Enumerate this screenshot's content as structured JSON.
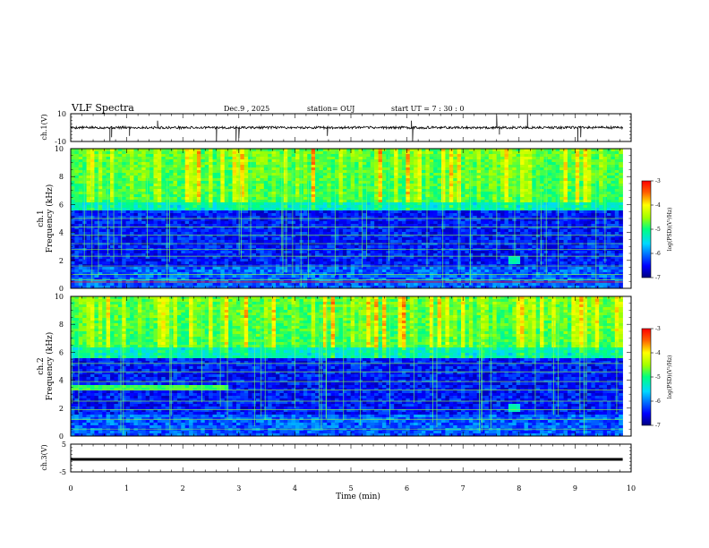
{
  "header": {
    "title": "VLF Spectra",
    "date": "Dec.9 , 2025",
    "station": "station= OUJ",
    "start": "start UT = 7 : 30 : 0"
  },
  "chart_data": [
    {
      "type": "line",
      "ylabel": "ch.1(V)",
      "ylim": [
        -10,
        10
      ],
      "yticks": [
        {
          "v": 10,
          "label": "10"
        },
        {
          "v": -10,
          "label": "-10"
        }
      ],
      "xlim": [
        0,
        10
      ],
      "baseline": 0,
      "spikes": [
        {
          "x": 0.7,
          "y": -9.5
        },
        {
          "x": 0.73,
          "y": -7.0
        },
        {
          "x": 1.05,
          "y": -6.0
        },
        {
          "x": 1.55,
          "y": 5.0
        },
        {
          "x": 2.6,
          "y": -9.8
        },
        {
          "x": 2.95,
          "y": -9.5
        },
        {
          "x": 3.0,
          "y": -7.5
        },
        {
          "x": 4.58,
          "y": -6.0
        },
        {
          "x": 6.08,
          "y": 5.0
        },
        {
          "x": 6.1,
          "y": -9.8
        },
        {
          "x": 7.6,
          "y": 9.0
        },
        {
          "x": 7.65,
          "y": -5.0
        },
        {
          "x": 8.15,
          "y": 9.5
        },
        {
          "x": 9.05,
          "y": -9.8
        },
        {
          "x": 9.1,
          "y": -7.0
        }
      ]
    },
    {
      "type": "heatmap",
      "channel": "ch.1",
      "ylabel": "Frequency (kHz)",
      "ylim": [
        0,
        10
      ],
      "yticks": [
        0,
        2,
        4,
        6,
        8,
        10
      ],
      "xlim": [
        0,
        10
      ],
      "colorbar": {
        "label": "log(PSD)(V²/Hz)",
        "range": [
          -7,
          -3
        ],
        "ticks": [
          -3,
          -4,
          -5,
          -6,
          -7
        ]
      },
      "seed": 11,
      "cutoff_khz": 5.9,
      "lines_khz": [
        0.6,
        1.0,
        1.6,
        2.3,
        2.8,
        3.2,
        3.8,
        4.4,
        5.0
      ],
      "blob": {
        "x": 7.9,
        "y": 2.0
      }
    },
    {
      "type": "heatmap",
      "channel": "ch.2",
      "ylabel": "Frequency (kHz)",
      "ylim": [
        0,
        10
      ],
      "yticks": [
        0,
        2,
        4,
        6,
        8,
        10
      ],
      "xlim": [
        0,
        10
      ],
      "colorbar": {
        "label": "log(PSD)(V²/Hz)",
        "range": [
          -7,
          -3
        ],
        "ticks": [
          -3,
          -4,
          -5,
          -6,
          -7
        ]
      },
      "seed": 23,
      "cutoff_khz": 6.0,
      "lines_khz": [
        0.5,
        1.2,
        1.9,
        2.5,
        3.3,
        3.9,
        4.6,
        5.2
      ],
      "band": {
        "x0": 0,
        "x1": 2.8,
        "y0": 3.3,
        "y1": 3.7
      },
      "blob": {
        "x": 7.9,
        "y": 2.0
      }
    },
    {
      "type": "line",
      "ylabel": "ch.3(V)",
      "ylim": [
        -5,
        5
      ],
      "yticks": [
        {
          "v": 5,
          "label": "5"
        },
        {
          "v": -5,
          "label": "-5"
        }
      ],
      "xlim": [
        0,
        10
      ],
      "baseline": -0.5
    }
  ],
  "xaxis": {
    "label": "Time (min)",
    "ticks": [
      "0",
      "1",
      "2",
      "3",
      "4",
      "5",
      "6",
      "7",
      "8",
      "9",
      "10"
    ]
  }
}
